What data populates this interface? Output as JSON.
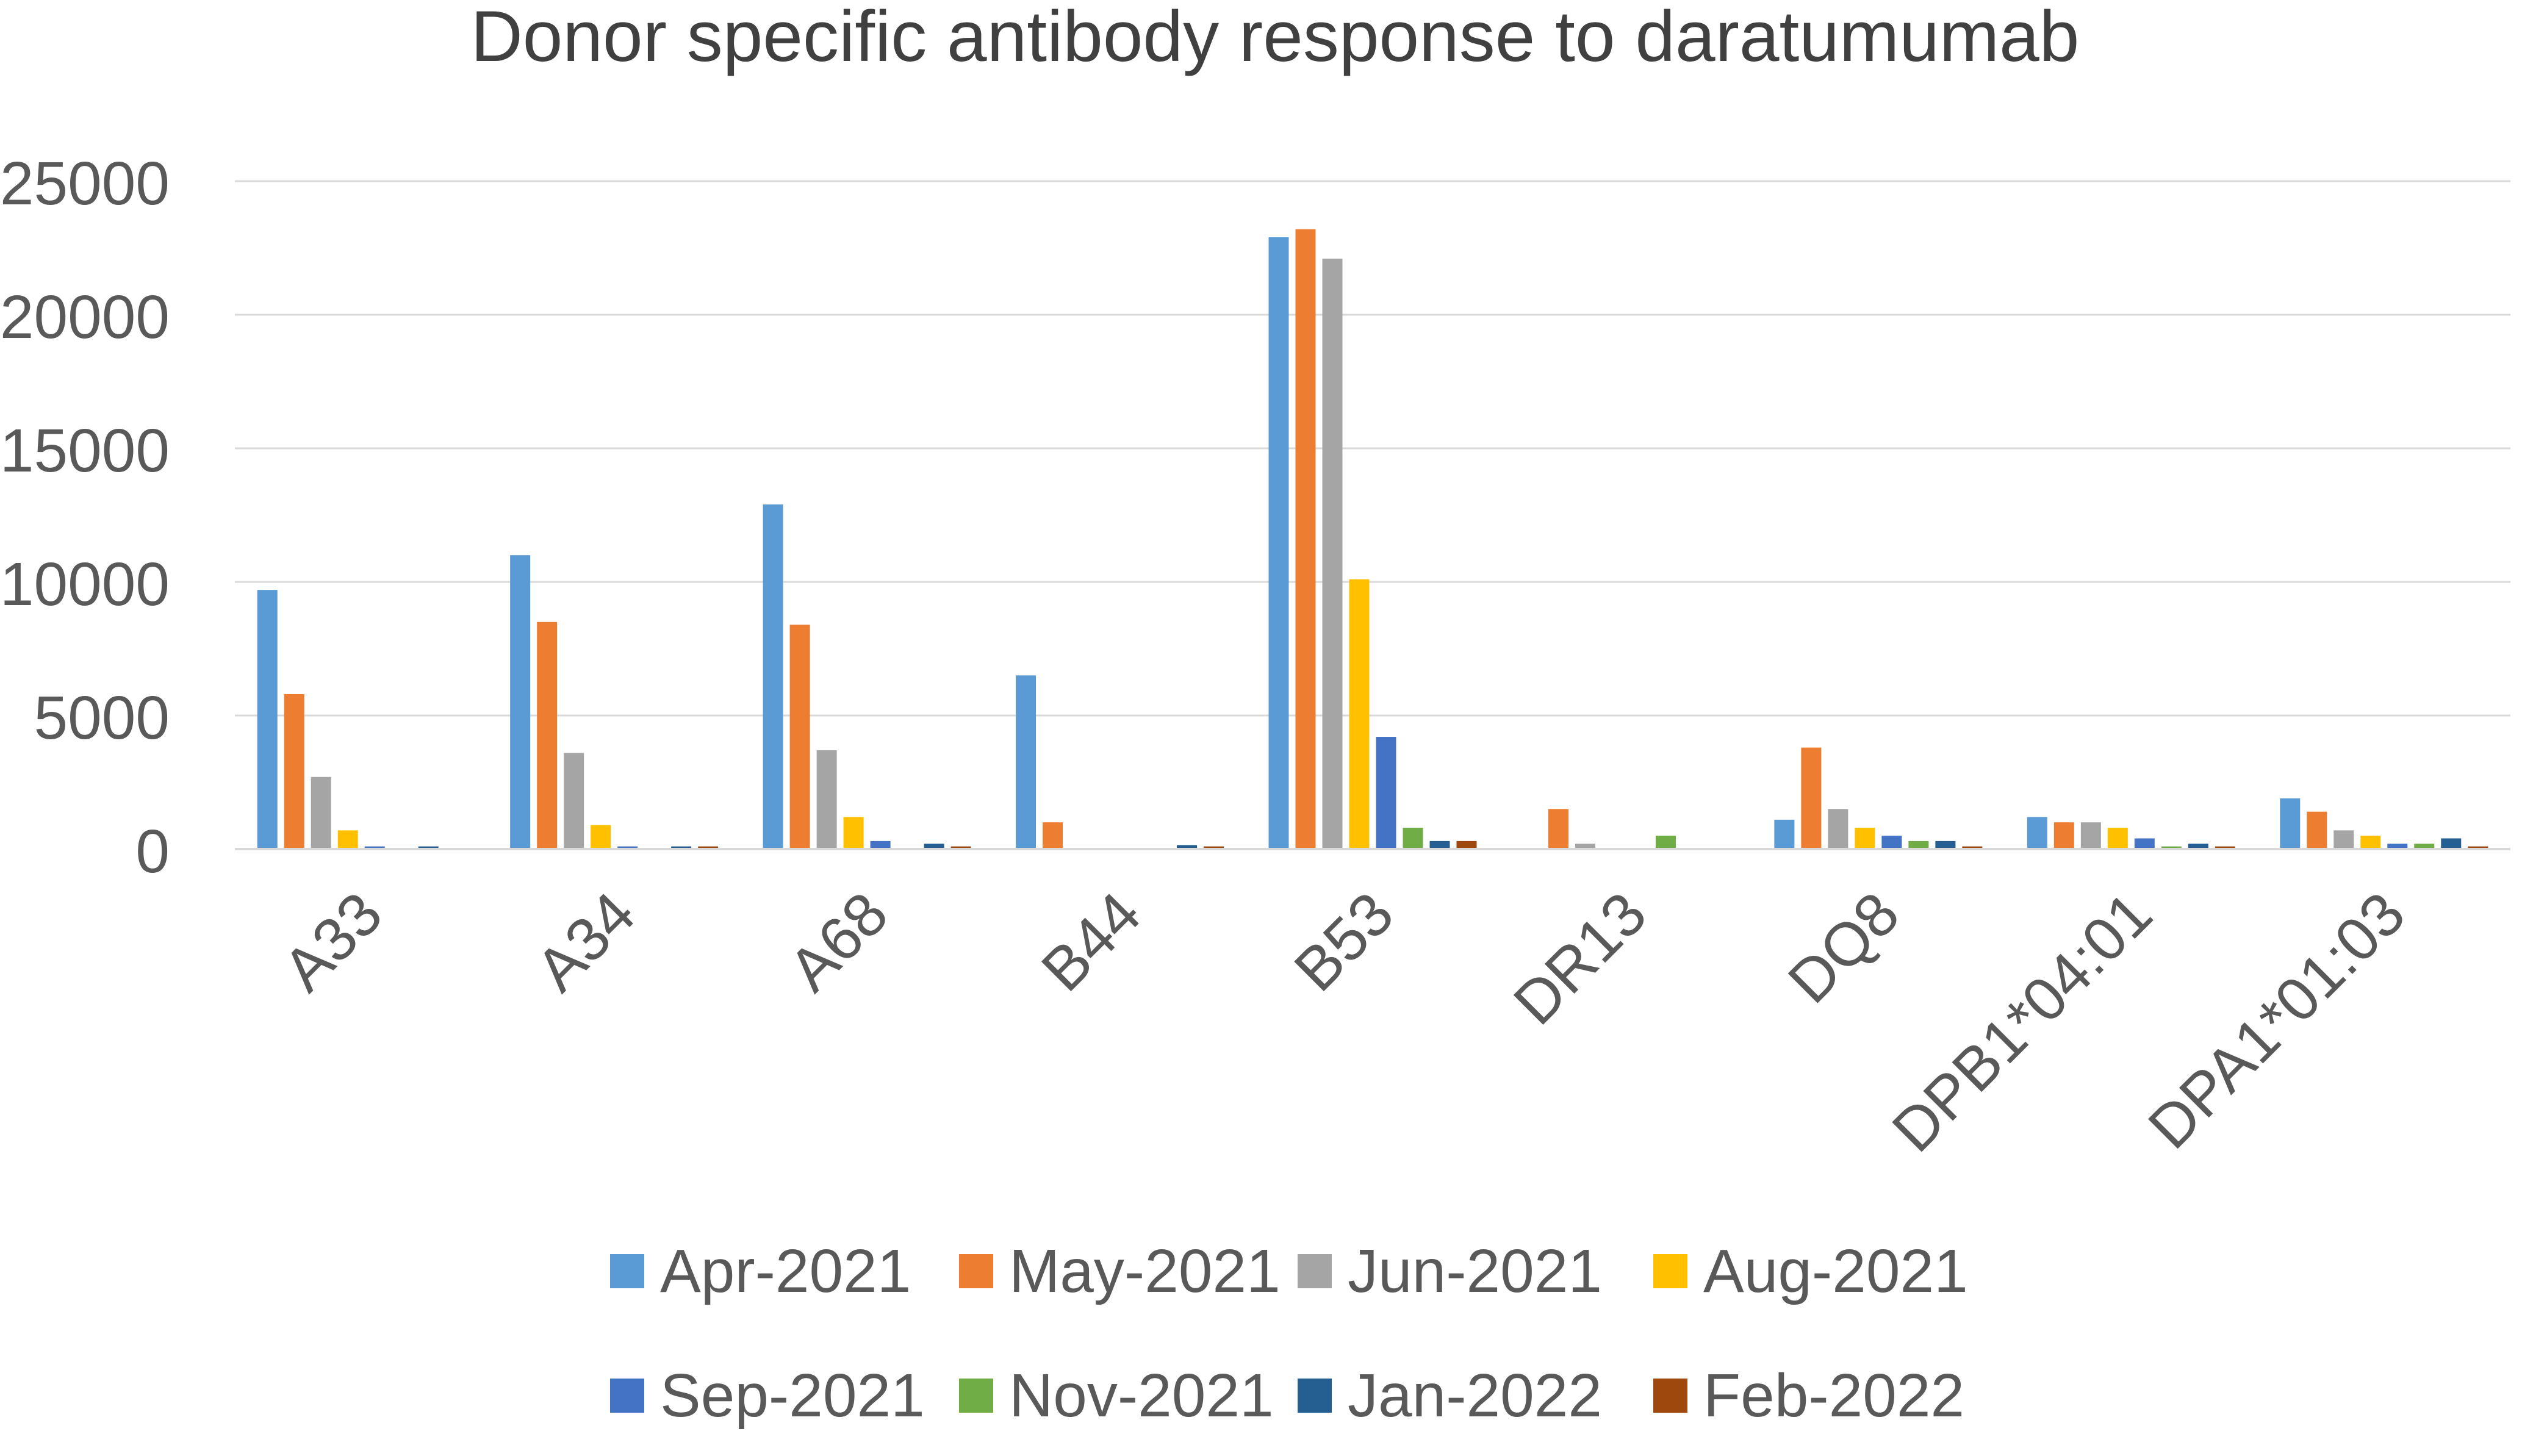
{
  "chart_data": {
    "type": "bar",
    "title": "Donor specific antibody response to  daratumumab",
    "xlabel": "",
    "ylabel": "",
    "ylim": [
      0,
      25000
    ],
    "yticks": [
      0,
      5000,
      10000,
      15000,
      20000,
      25000
    ],
    "ytick_labels": [
      "0",
      "5000",
      "10000",
      "15000",
      "20000",
      "25000"
    ],
    "grid": true,
    "legend_position": "bottom",
    "categories": [
      "A33",
      "A34",
      "A68",
      "B44",
      "B53",
      "DR13",
      "DQ8",
      "DPB1*04:01",
      "DPA1*01:03"
    ],
    "series": [
      {
        "name": "Apr-2021",
        "color": "#5B9BD5",
        "values": [
          9700,
          11000,
          12900,
          6500,
          22900,
          0,
          1100,
          1200,
          1900
        ]
      },
      {
        "name": "May-2021",
        "color": "#ED7D31",
        "values": [
          5800,
          8500,
          8400,
          1000,
          23200,
          1500,
          3800,
          1000,
          1400
        ]
      },
      {
        "name": "Jun-2021",
        "color": "#A5A5A5",
        "values": [
          2700,
          3600,
          3700,
          0,
          22100,
          200,
          1500,
          1000,
          700
        ]
      },
      {
        "name": "Aug-2021",
        "color": "#FFC000",
        "values": [
          700,
          900,
          1200,
          0,
          10100,
          0,
          800,
          800,
          500
        ]
      },
      {
        "name": "Sep-2021",
        "color": "#4472C4",
        "values": [
          100,
          100,
          300,
          0,
          4200,
          0,
          500,
          400,
          200
        ]
      },
      {
        "name": "Nov-2021",
        "color": "#70AD47",
        "values": [
          0,
          0,
          0,
          0,
          800,
          500,
          300,
          100,
          200
        ]
      },
      {
        "name": "Jan-2022",
        "color": "#255E91",
        "values": [
          100,
          100,
          200,
          150,
          300,
          0,
          300,
          200,
          400
        ]
      },
      {
        "name": "Feb-2022",
        "color": "#9E480E",
        "values": [
          0,
          100,
          100,
          100,
          300,
          0,
          100,
          100,
          100
        ]
      }
    ]
  }
}
